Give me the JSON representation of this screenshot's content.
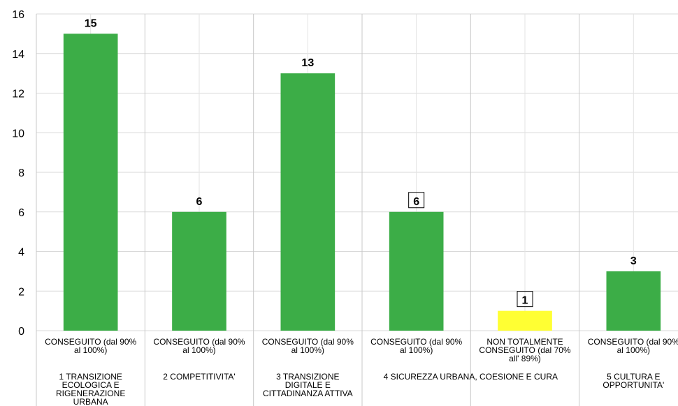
{
  "chart_data": {
    "type": "bar",
    "ylim": [
      0,
      16
    ],
    "yticks": [
      0,
      2,
      4,
      6,
      8,
      10,
      12,
      14,
      16
    ],
    "grid": true,
    "legend": "none",
    "bar_color_default": "#3cad47",
    "bar_color_partial": "#ffff33",
    "bars": [
      {
        "status": "CONSEGUITO (dal 90% al 100%)",
        "group": 0,
        "value": 15,
        "color": "#3cad47",
        "boxed": false
      },
      {
        "status": "CONSEGUITO (dal 90% al 100%)",
        "group": 1,
        "value": 6,
        "color": "#3cad47",
        "boxed": false
      },
      {
        "status": "CONSEGUITO (dal 90% al 100%)",
        "group": 2,
        "value": 13,
        "color": "#3cad47",
        "boxed": false
      },
      {
        "status": "CONSEGUITO (dal 90% al 100%)",
        "group": 3,
        "value": 6,
        "color": "#3cad47",
        "boxed": true
      },
      {
        "status": "NON TOTALMENTE CONSEGUITO (dal 70% all' 89%)",
        "group": 3,
        "value": 1,
        "color": "#ffff33",
        "boxed": true
      },
      {
        "status": "CONSEGUITO (dal 90% al 100%)",
        "group": 4,
        "value": 3,
        "color": "#3cad47",
        "boxed": false
      }
    ],
    "groups": [
      {
        "label": "1 TRANSIZIONE ECOLOGICA E RIGENERAZIONE URBANA",
        "span": 1
      },
      {
        "label": "2 COMPETITIVITA'",
        "span": 1
      },
      {
        "label": "3 TRANSIZIONE DIGITALE E CITTADINANZA ATTIVA",
        "span": 1
      },
      {
        "label": "4 SICUREZZA URBANA, COESIONE E CURA",
        "span": 2
      },
      {
        "label": "5 CULTURA E OPPORTUNITA'",
        "span": 1
      }
    ]
  }
}
